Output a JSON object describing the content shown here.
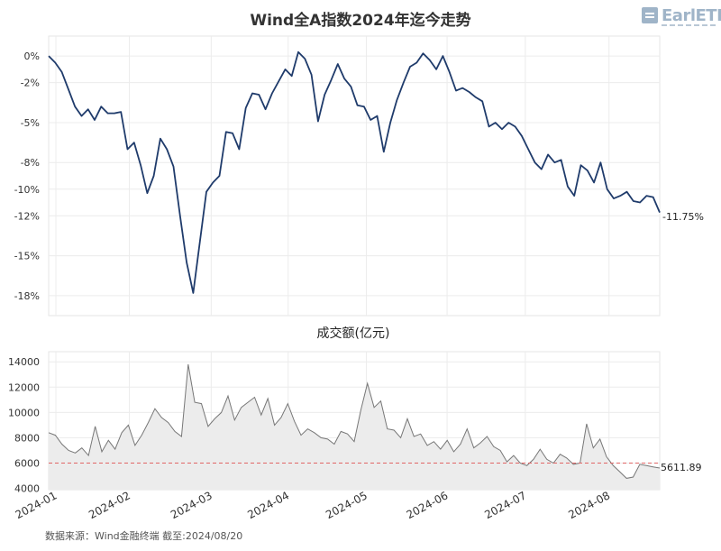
{
  "chart_data": [
    {
      "type": "line",
      "title": "Wind全A指数2024年迄今走势",
      "series": [
        {
          "color": "#1f3b6b",
          "values": [
            0,
            -0.5,
            -1.2,
            -2.5,
            -3.8,
            -4.5,
            -4.0,
            -4.8,
            -3.8,
            -4.3,
            -4.3,
            -4.2,
            -7.0,
            -6.5,
            -8.2,
            -10.3,
            -9.0,
            -6.2,
            -7.0,
            -8.3,
            -12.0,
            -15.5,
            -17.8,
            -14.0,
            -10.2,
            -9.5,
            -9.0,
            -5.7,
            -5.8,
            -7.0,
            -3.9,
            -2.8,
            -2.9,
            -4.0,
            -2.8,
            -1.9,
            -1.0,
            -1.5,
            0.3,
            -0.2,
            -1.4,
            -4.9,
            -2.9,
            -1.8,
            -0.6,
            -1.7,
            -2.3,
            -3.7,
            -3.8,
            -4.8,
            -4.5,
            -7.2,
            -5.0,
            -3.3,
            -2.0,
            -0.8,
            -0.5,
            0.2,
            -0.3,
            -1.0,
            0.0,
            -1.2,
            -2.6,
            -2.4,
            -2.7,
            -3.1,
            -3.4,
            -5.3,
            -5.0,
            -5.5,
            -5.0,
            -5.3,
            -6.0,
            -7.0,
            -8.0,
            -8.5,
            -7.4,
            -8.0,
            -7.8,
            -9.8,
            -10.5,
            -8.2,
            -8.6,
            -9.5,
            -8.0,
            -10.0,
            -10.7,
            -10.5,
            -10.2,
            -10.9,
            -11.0,
            -10.5,
            -10.6,
            -11.75
          ],
          "end_label": "-11.75%"
        }
      ],
      "yticks": [
        "0%",
        "-2%",
        "-5%",
        "-8%",
        "-10%",
        "-12%",
        "-15%",
        "-18%"
      ],
      "ylim": [
        -19.5,
        1.5
      ],
      "grid": true
    },
    {
      "type": "area",
      "title": "成交额(亿元)",
      "series": [
        {
          "color": "#777777",
          "values": [
            8400,
            8200,
            7500,
            7000,
            6800,
            7200,
            6600,
            8900,
            6900,
            7800,
            7100,
            8400,
            9000,
            7400,
            8200,
            9200,
            10300,
            9600,
            9200,
            8500,
            8100,
            13800,
            10800,
            10700,
            8900,
            9500,
            10000,
            11300,
            9400,
            10400,
            10800,
            11200,
            9800,
            11100,
            9000,
            9600,
            10700,
            9300,
            8200,
            8700,
            8400,
            8000,
            7900,
            7500,
            8500,
            8300,
            7700,
            10200,
            12300,
            10400,
            10900,
            8700,
            8600,
            8000,
            9500,
            8100,
            8300,
            7400,
            7700,
            7100,
            7800,
            6900,
            7500,
            8700,
            7200,
            7600,
            8100,
            7300,
            7000,
            6100,
            6600,
            6000,
            5800,
            6300,
            7100,
            6300,
            6000,
            6700,
            6400,
            5900,
            6000,
            9100,
            7200,
            7900,
            6500,
            5800,
            5300,
            4800,
            4900,
            5900,
            5800,
            5700,
            5611.89
          ],
          "end_label": "5611.89"
        }
      ],
      "reference_line": {
        "value": 6000,
        "color": "#e06666"
      },
      "yticks": [
        "14000",
        "12000",
        "10000",
        "8000",
        "6000",
        "4000"
      ],
      "ylim": [
        3900,
        14800
      ],
      "grid": true
    }
  ],
  "x_axis": {
    "tick_labels": [
      "2024-01",
      "2024-02",
      "2024-03",
      "2024-04",
      "2024-05",
      "2024-06",
      "2024-07",
      "2024-08"
    ]
  },
  "source_note": "数据来源：Wind金融终端 截至:2024/08/20",
  "logo": {
    "text": "EarlETF"
  },
  "colors": {
    "index_line": "#1f3b6b",
    "volume_line": "#777777",
    "volume_fill": "#ececec",
    "reference": "#e06666",
    "grid": "#e6e6e6"
  }
}
